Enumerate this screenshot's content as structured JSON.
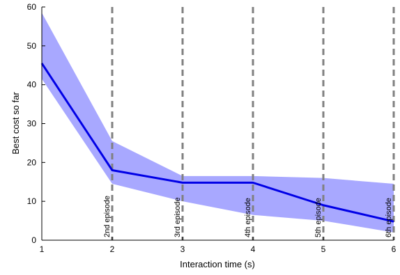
{
  "chart_data": {
    "type": "line",
    "xlabel": "Interaction time (s)",
    "ylabel": "Best cost so far",
    "xlim": [
      1,
      6
    ],
    "ylim": [
      0,
      60
    ],
    "x_ticks": [
      1,
      2,
      3,
      4,
      5,
      6
    ],
    "y_ticks": [
      0,
      10,
      20,
      30,
      40,
      50,
      60
    ],
    "grid": false,
    "series": [
      {
        "x": [
          1,
          2,
          3,
          4,
          5,
          6
        ],
        "mean": [
          45.5,
          18,
          14.8,
          14.8,
          9,
          4.8
        ],
        "upper": [
          58.5,
          25.5,
          16.5,
          16.5,
          16,
          14.5
        ],
        "lower": [
          41.5,
          14.5,
          10,
          6.5,
          5,
          2
        ],
        "color": "#0000e6",
        "band_color": "#a8a8ff"
      }
    ],
    "vlines": [
      {
        "x": 2,
        "label": "2nd episode"
      },
      {
        "x": 3,
        "label": "3rd episode"
      },
      {
        "x": 4,
        "label": "4th episode"
      },
      {
        "x": 5,
        "label": "5th episode"
      },
      {
        "x": 6,
        "label": "6th episode"
      }
    ],
    "vline_color": "#808080"
  }
}
